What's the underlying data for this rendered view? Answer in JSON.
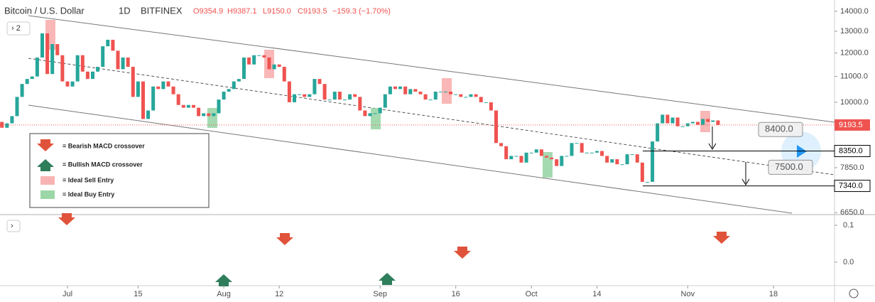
{
  "chart_data": {
    "type": "candlestick",
    "title": "Bitcoin / U.S. Dollar",
    "interval": "1D",
    "exchange": "BITFINEX",
    "ohlc_text": [
      "O9354.9",
      "H9387.1",
      "L9150.0",
      "C9193.5",
      "−159.3 (−1.70%)"
    ],
    "zoom_label": "2",
    "log_scale": true,
    "up_color": "#26a69a",
    "down_color": "#ef5350",
    "categories": [
      null,
      null,
      null,
      null,
      null,
      null,
      null,
      null,
      null,
      null,
      null,
      null,
      null,
      null,
      "Jul",
      null,
      null,
      null,
      null,
      null,
      null,
      null,
      null,
      null,
      null,
      null,
      null,
      null,
      "15",
      null,
      null,
      null,
      null,
      null,
      null,
      null,
      null,
      null,
      null,
      null,
      null,
      null,
      null,
      null,
      null,
      "Aug",
      null,
      null,
      null,
      null,
      null,
      null,
      null,
      null,
      null,
      null,
      "12",
      null,
      null,
      null,
      null,
      null,
      null,
      null,
      null,
      null,
      null,
      null,
      null,
      null,
      null,
      null,
      null,
      null,
      null,
      null,
      "Sep",
      null,
      null,
      null,
      null,
      null,
      null,
      null,
      null,
      null,
      null,
      null,
      null,
      null,
      null,
      "16",
      null,
      null,
      null,
      null,
      null,
      null,
      null,
      null,
      null,
      null,
      null,
      null,
      null,
      null,
      "Oct",
      null,
      null,
      null,
      null,
      null,
      null,
      null,
      null,
      null,
      null,
      null,
      null,
      "14",
      null,
      null,
      null,
      null,
      null,
      null,
      null,
      null,
      null,
      null,
      null,
      null,
      null,
      null,
      null,
      null,
      null,
      "Nov",
      null,
      null,
      null,
      null,
      null,
      null,
      null,
      null,
      null,
      null,
      null,
      null,
      null,
      null,
      null,
      null,
      "18",
      null,
      null,
      null,
      null,
      null
    ],
    "values": [
      9300,
      9100,
      9250,
      9500,
      10200,
      10700,
      10900,
      11000,
      11800,
      12900,
      11100,
      12400,
      11900,
      10800,
      10600,
      10800,
      11900,
      11200,
      10900,
      11200,
      11400,
      12300,
      12600,
      12100,
      11300,
      11800,
      11400,
      10200,
      10800,
      9400,
      9700,
      10600,
      10500,
      10800,
      10600,
      10300,
      9900,
      9800,
      9900,
      9800,
      9500,
      9600,
      9500,
      9600,
      10100,
      10400,
      10500,
      10800,
      10900,
      11800,
      11500,
      11900,
      11900,
      11800,
      11300,
      11500,
      11400,
      10800,
      10000,
      10300,
      10300,
      10200,
      10300,
      10900,
      10700,
      10100,
      10100,
      10400,
      10100,
      10100,
      10300,
      10200,
      9700,
      9500,
      9600,
      9600,
      9800,
      10300,
      10600,
      10500,
      10600,
      10300,
      10500,
      10400,
      10300,
      10100,
      10100,
      10400,
      10400,
      10400,
      10300,
      10300,
      10200,
      10200,
      10300,
      10200,
      10000,
      10000,
      9700,
      8600,
      8500,
      8100,
      8200,
      8200,
      8000,
      8300,
      8300,
      8400,
      8200,
      8150,
      8100,
      7900,
      8200,
      8200,
      8600,
      8600,
      8300,
      8300,
      8300,
      8350,
      8200,
      8000,
      8100,
      7950,
      7950,
      8250,
      8250,
      8000,
      7450,
      7450,
      8650,
      9250,
      9550,
      9250,
      9450,
      9150,
      9150,
      9250,
      9300,
      9200,
      9400,
      9300,
      9350,
      9193.5,
      null,
      null,
      null,
      null,
      null,
      null,
      null,
      null,
      null,
      null,
      null,
      null,
      null,
      null,
      null,
      null
    ],
    "ylim": [
      6600,
      14520
    ],
    "yticks": [
      {
        "value": 14000,
        "label": "14000.0"
      },
      {
        "value": 13000,
        "label": "13000.0"
      },
      {
        "value": 12000,
        "label": "12000.0"
      },
      {
        "value": 11000,
        "label": "11000.0"
      },
      {
        "value": 10000,
        "label": "10000.0"
      },
      {
        "value": 7850,
        "label": "7850.0"
      },
      {
        "value": 6650,
        "label": "6650.0"
      }
    ],
    "last_price": {
      "value": 9193.5,
      "label": "9193.5"
    },
    "levels": [
      {
        "value": 8350,
        "label": "8350.0"
      },
      {
        "value": 7340,
        "label": "7340.0"
      }
    ],
    "annotations": [
      {
        "value": 8400,
        "label": "8400.0"
      },
      {
        "value": 7500,
        "label": "7500.0"
      }
    ],
    "legend": [
      "= Bearish MACD crossover",
      "= Bullish MACD crossover",
      "= Ideal Sell Entry",
      "= Ideal Buy Entry"
    ],
    "macd": {
      "ylim": [
        -0.06,
        0.125
      ],
      "yticks": [
        0.1,
        {
          "value": 0,
          "label": "0.0"
        }
      ]
    }
  }
}
